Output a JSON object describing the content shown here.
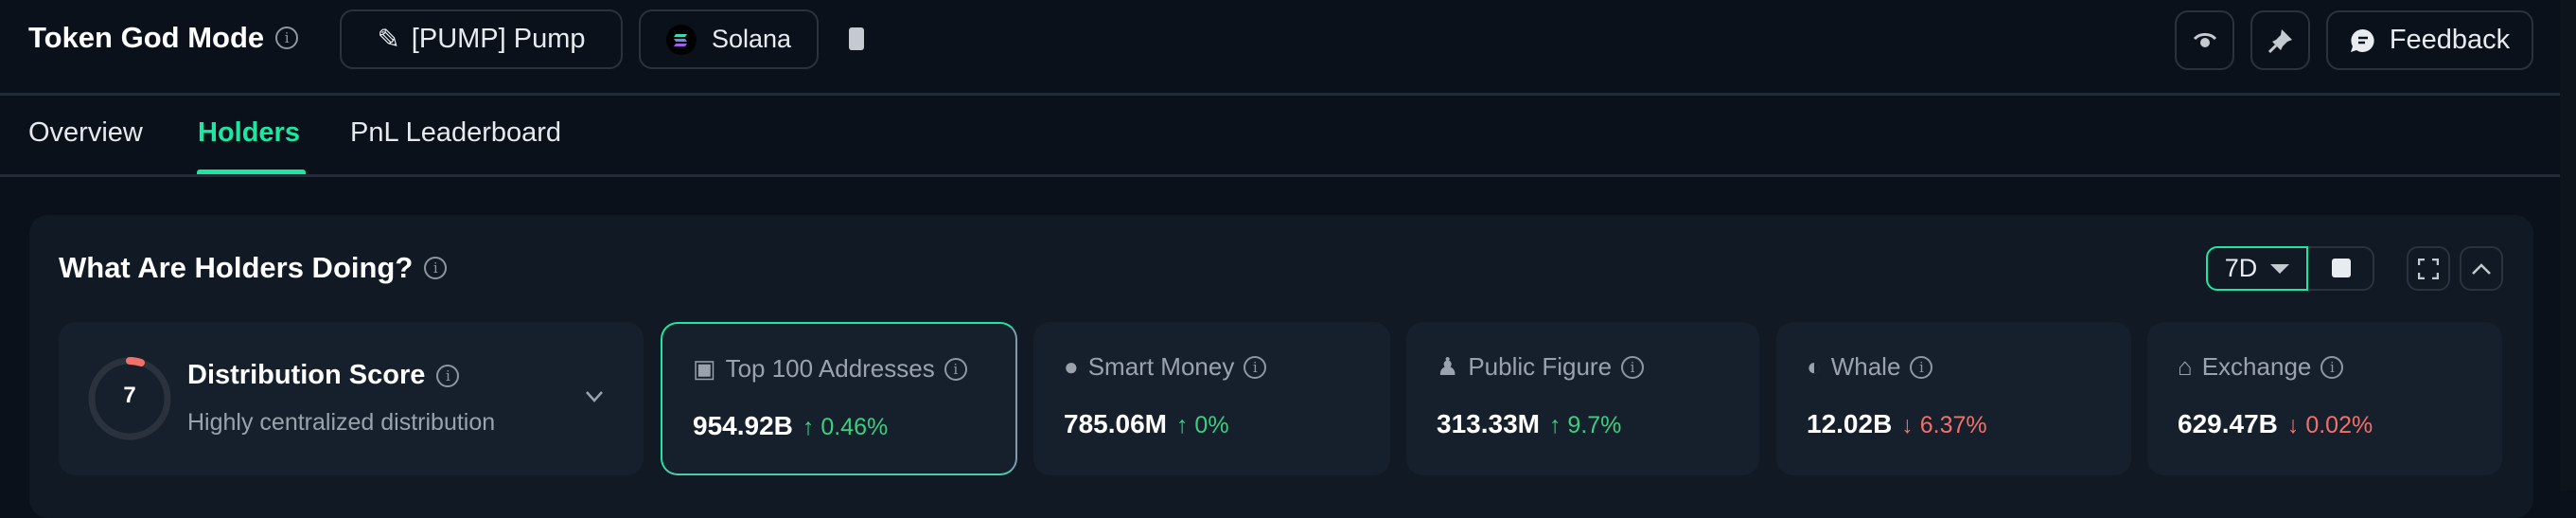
{
  "header": {
    "title": "Token God Mode",
    "token_label": "[PUMP] Pump",
    "chain_label": "Solana",
    "feedback_label": "Feedback"
  },
  "tabs": [
    {
      "label": "Overview"
    },
    {
      "label": "Holders",
      "active": true
    },
    {
      "label": "PnL Leaderboard"
    }
  ],
  "section": {
    "title": "What Are Holders Doing?",
    "period": "7D"
  },
  "distribution": {
    "score": "7",
    "title": "Distribution Score",
    "subtitle": "Highly centralized distribution"
  },
  "cards": [
    {
      "label": "Top 100 Addresses",
      "icon": "money-icon",
      "value": "954.92B",
      "change": "0.46%",
      "direction": "up",
      "selected": true
    },
    {
      "label": "Smart Money",
      "icon": "sunglasses-icon",
      "value": "785.06M",
      "change": "0%",
      "direction": "up"
    },
    {
      "label": "Public Figure",
      "icon": "spotlight-person-icon",
      "value": "313.33M",
      "change": "9.7%",
      "direction": "up"
    },
    {
      "label": "Whale",
      "icon": "whale-icon",
      "value": "12.02B",
      "change": "6.37%",
      "direction": "down"
    },
    {
      "label": "Exchange",
      "icon": "bank-icon",
      "value": "629.47B",
      "change": "0.02%",
      "direction": "down"
    }
  ],
  "arrows": {
    "up": "↑",
    "down": "↓"
  },
  "colors": {
    "accent": "#1ee6a0",
    "up": "#3ccf7e",
    "down": "#f2706a",
    "background": "#0b111a"
  }
}
